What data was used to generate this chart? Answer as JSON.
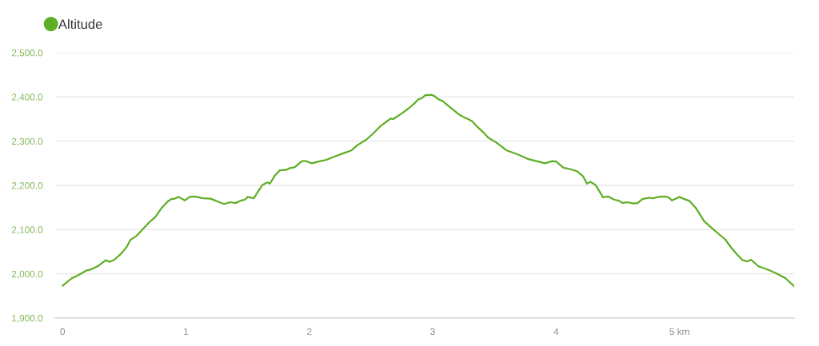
{
  "chart_data": {
    "type": "line",
    "x": [
      0.0,
      0.07,
      0.14,
      0.19,
      0.24,
      0.29,
      0.35,
      0.38,
      0.42,
      0.48,
      0.52,
      0.55,
      0.6,
      0.64,
      0.7,
      0.75,
      0.8,
      0.85,
      0.88,
      0.91,
      0.94,
      0.99,
      1.03,
      1.07,
      1.14,
      1.2,
      1.27,
      1.31,
      1.36,
      1.4,
      1.45,
      1.48,
      1.5,
      1.55,
      1.58,
      1.62,
      1.66,
      1.68,
      1.72,
      1.76,
      1.81,
      1.84,
      1.88,
      1.94,
      1.97,
      2.02,
      2.09,
      2.13,
      2.22,
      2.28,
      2.34,
      2.39,
      2.46,
      2.52,
      2.58,
      2.63,
      2.66,
      2.68,
      2.75,
      2.8,
      2.85,
      2.88,
      2.91,
      2.94,
      2.99,
      3.02,
      3.05,
      3.08,
      3.13,
      3.17,
      3.21,
      3.26,
      3.28,
      3.32,
      3.36,
      3.41,
      3.45,
      3.52,
      3.6,
      3.69,
      3.77,
      3.84,
      3.91,
      3.97,
      4.0,
      4.06,
      4.11,
      4.17,
      4.22,
      4.25,
      4.28,
      4.32,
      4.35,
      4.38,
      4.42,
      4.47,
      4.51,
      4.54,
      4.57,
      4.63,
      4.66,
      4.7,
      4.75,
      4.79,
      4.83,
      4.88,
      4.91,
      4.94,
      5.0,
      5.04,
      5.08,
      5.13,
      5.2,
      5.24,
      5.31,
      5.37,
      5.42,
      5.46,
      5.51,
      5.55,
      5.58,
      5.64,
      5.73,
      5.8,
      5.86,
      5.93
    ],
    "series": [
      {
        "name": "Altitude",
        "color": "#5fae25",
        "values": [
          1973,
          1989,
          1999,
          2007,
          2011,
          2018,
          2031,
          2027,
          2032,
          2047,
          2061,
          2077,
          2086,
          2098,
          2116,
          2128,
          2148,
          2163,
          2169,
          2170,
          2174,
          2166,
          2174,
          2175,
          2171,
          2170,
          2162,
          2158,
          2162,
          2160,
          2166,
          2168,
          2174,
          2171,
          2184,
          2201,
          2207,
          2204,
          2222,
          2234,
          2235,
          2239,
          2241,
          2255,
          2255,
          2250,
          2255,
          2257,
          2267,
          2273,
          2279,
          2291,
          2303,
          2318,
          2335,
          2345,
          2351,
          2350,
          2363,
          2373,
          2385,
          2394,
          2397,
          2404,
          2405,
          2401,
          2394,
          2391,
          2379,
          2370,
          2361,
          2353,
          2351,
          2345,
          2333,
          2320,
          2308,
          2296,
          2279,
          2270,
          2260,
          2255,
          2250,
          2255,
          2254,
          2240,
          2237,
          2232,
          2220,
          2204,
          2208,
          2201,
          2187,
          2173,
          2175,
          2168,
          2165,
          2160,
          2162,
          2159,
          2160,
          2169,
          2172,
          2171,
          2174,
          2175,
          2173,
          2166,
          2174,
          2169,
          2165,
          2150,
          2119,
          2109,
          2092,
          2078,
          2059,
          2046,
          2031,
          2028,
          2032,
          2017,
          2008,
          1999,
          1990,
          1972
        ]
      }
    ],
    "xlim": [
      -0.06,
      5.93
    ],
    "xticks": [
      0,
      1,
      2,
      3,
      4,
      {
        "value": 5,
        "label": "5 km"
      }
    ],
    "ylim": [
      1900,
      2500
    ],
    "yticks": [
      {
        "value": 1900,
        "label": "1,900.0"
      },
      {
        "value": 2000,
        "label": "2,000.0"
      },
      {
        "value": 2100,
        "label": "2,100.0"
      },
      {
        "value": 2200,
        "label": "2,200.0"
      },
      {
        "value": 2300,
        "label": "2,300.0"
      },
      {
        "value": 2400,
        "label": "2,400.0"
      },
      {
        "value": 2500,
        "label": "2,500.0"
      }
    ],
    "grid": "y",
    "legend": "top left"
  }
}
